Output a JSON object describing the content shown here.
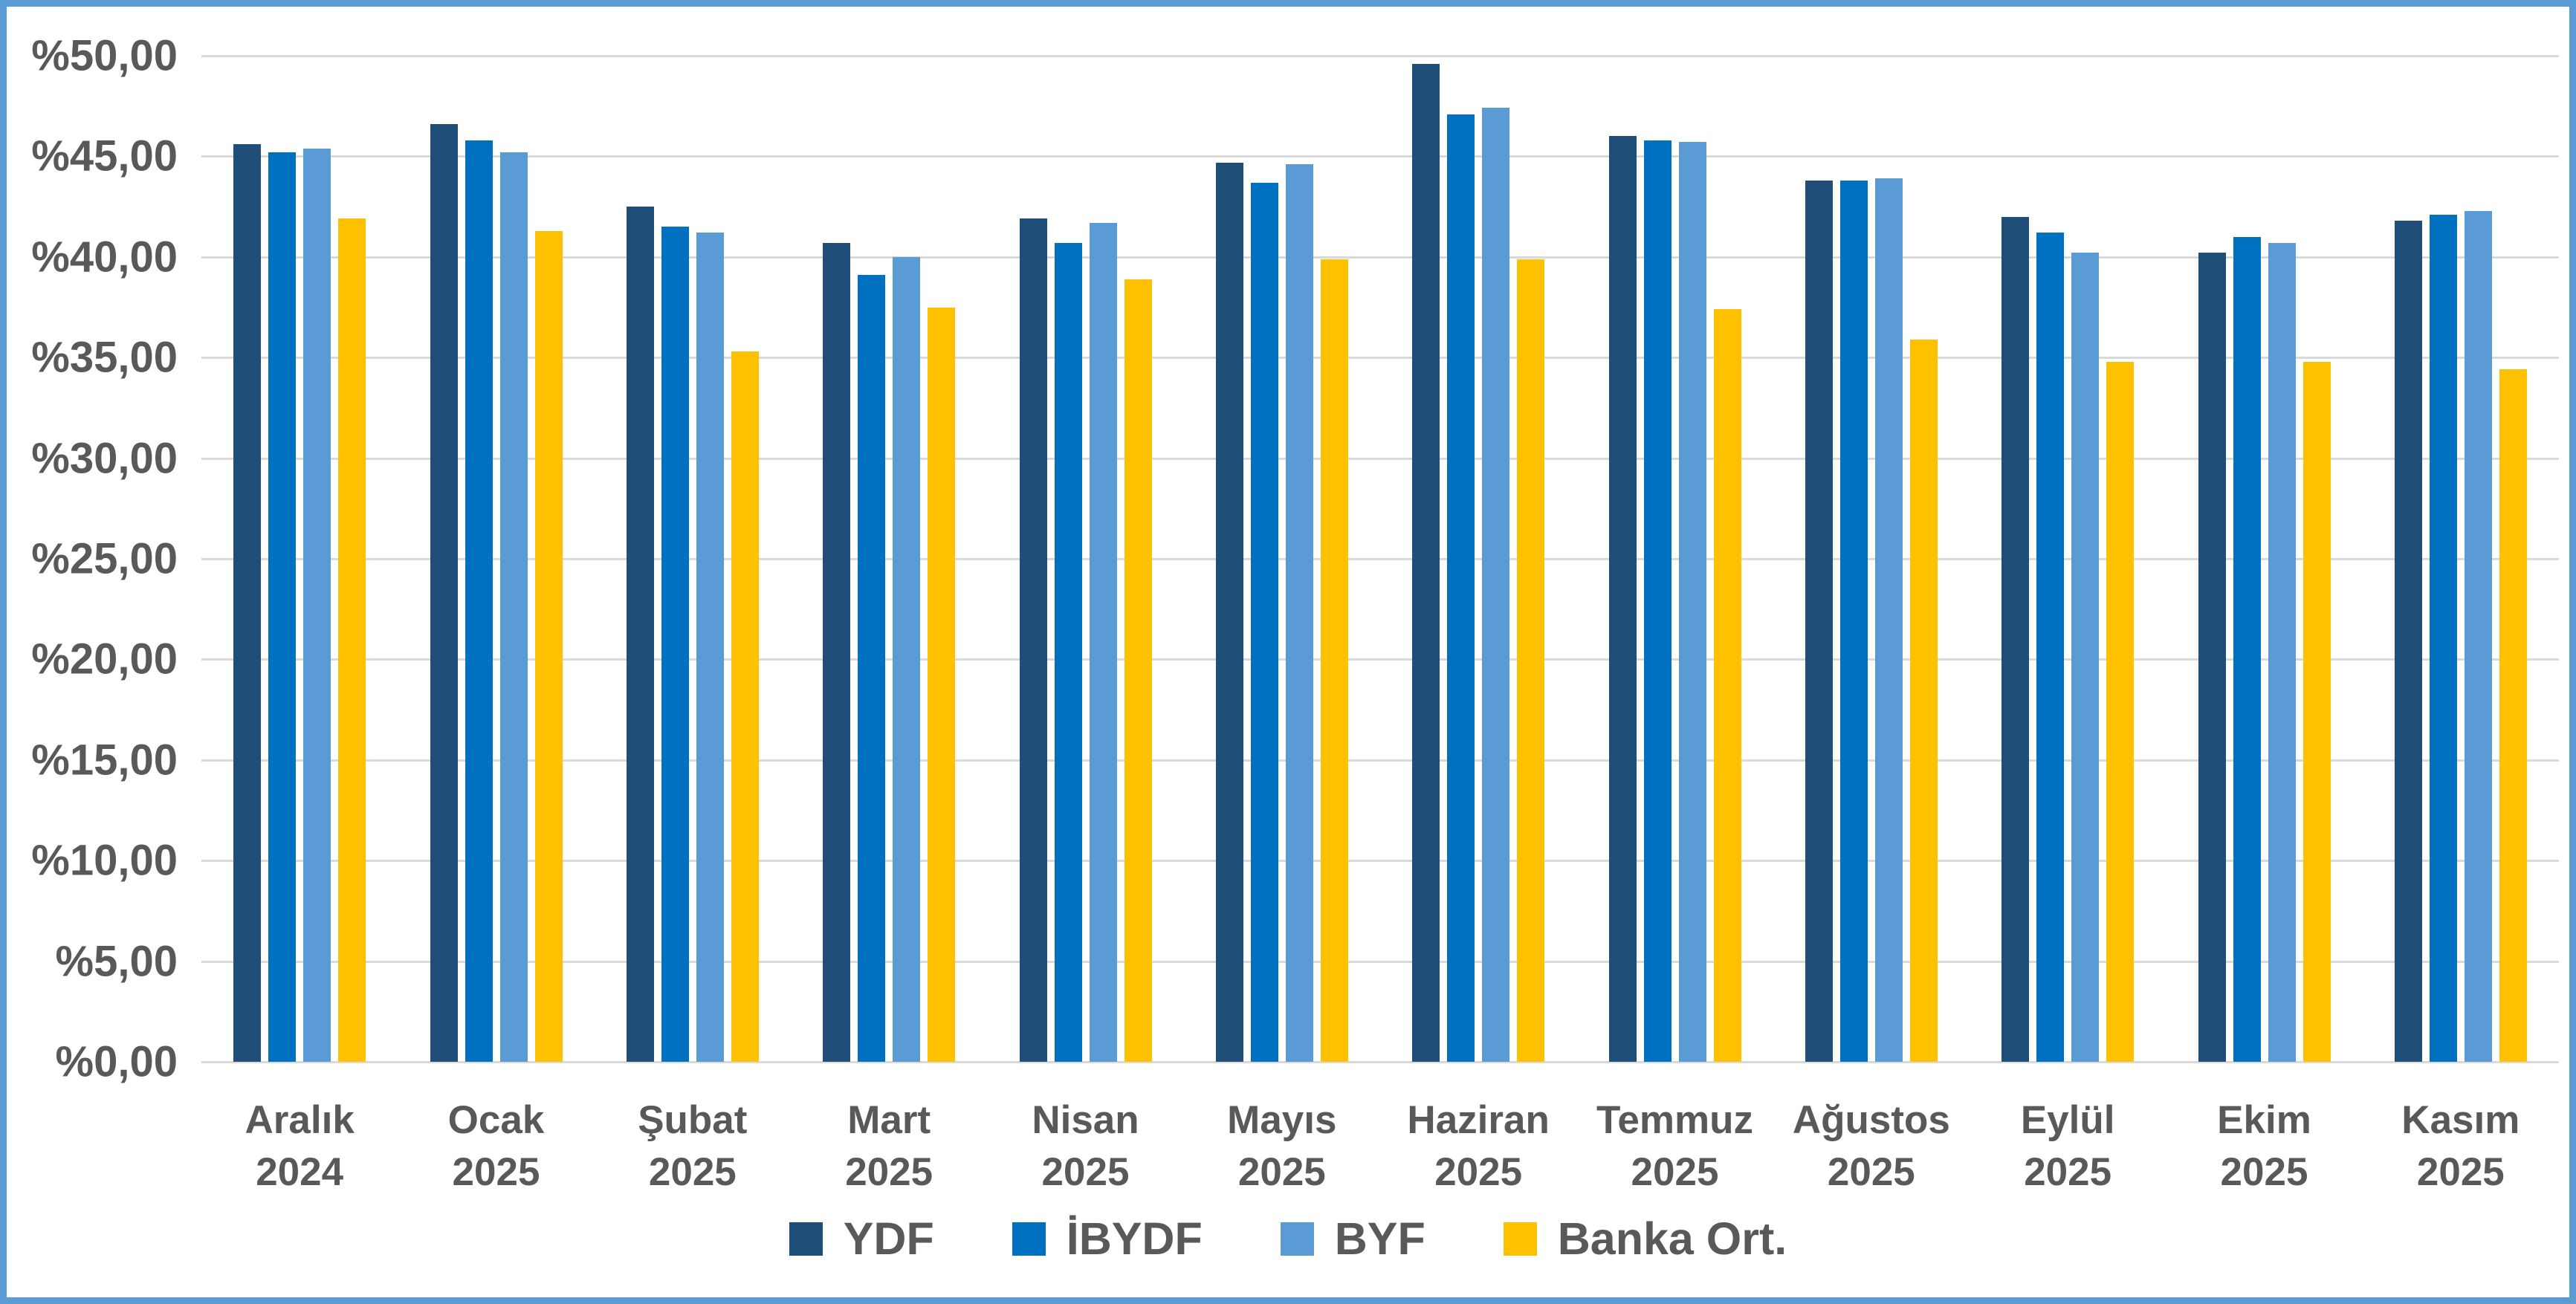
{
  "frame": {
    "border_color": "#5B9BD5",
    "background_color": "#FFFFFF"
  },
  "palette": {
    "grid_color": "#D9D9D9",
    "axis_text_color": "#595959"
  },
  "chart_data": {
    "type": "bar",
    "title": "",
    "categories": [
      {
        "month": "Aralık",
        "year": "2024"
      },
      {
        "month": "Ocak",
        "year": "2025"
      },
      {
        "month": "Şubat",
        "year": "2025"
      },
      {
        "month": "Mart",
        "year": "2025"
      },
      {
        "month": "Nisan",
        "year": "2025"
      },
      {
        "month": "Mayıs",
        "year": "2025"
      },
      {
        "month": "Haziran",
        "year": "2025"
      },
      {
        "month": "Temmuz",
        "year": "2025"
      },
      {
        "month": "Ağustos",
        "year": "2025"
      },
      {
        "month": "Eylül",
        "year": "2025"
      },
      {
        "month": "Ekim",
        "year": "2025"
      },
      {
        "month": "Kasım",
        "year": "2025"
      }
    ],
    "series": [
      {
        "name": "YDF",
        "color": "#1F4E79",
        "values": [
          45.6,
          46.6,
          42.5,
          40.7,
          41.9,
          44.7,
          49.6,
          46.0,
          43.8,
          42.0,
          40.2,
          41.8
        ]
      },
      {
        "name": "İBYDF",
        "color": "#0070C0",
        "values": [
          45.2,
          45.8,
          41.5,
          39.1,
          40.7,
          43.7,
          47.1,
          45.8,
          43.8,
          41.2,
          41.0,
          42.1
        ]
      },
      {
        "name": "BYF",
        "color": "#5B9BD5",
        "values": [
          45.4,
          45.2,
          41.2,
          40.0,
          41.7,
          44.6,
          47.4,
          45.7,
          43.9,
          40.2,
          40.7,
          42.3
        ]
      },
      {
        "name": "Banka Ort.",
        "color": "#FFC000",
        "values": [
          41.9,
          41.3,
          35.3,
          37.5,
          38.9,
          39.9,
          39.9,
          37.4,
          35.9,
          34.8,
          34.8,
          34.4
        ]
      }
    ],
    "y_axis": {
      "min": 0,
      "max": 50,
      "step": 5,
      "grid": true,
      "tick_labels": [
        "%0,00",
        "%5,00",
        "%10,00",
        "%15,00",
        "%20,00",
        "%25,00",
        "%30,00",
        "%35,00",
        "%40,00",
        "%45,00",
        "%50,00"
      ]
    },
    "x_axis": {
      "labels_two_line": true
    },
    "legend": {
      "position": "bottom",
      "entries": [
        "YDF",
        "İBYDF",
        "BYF",
        "Banka Ort."
      ]
    }
  }
}
